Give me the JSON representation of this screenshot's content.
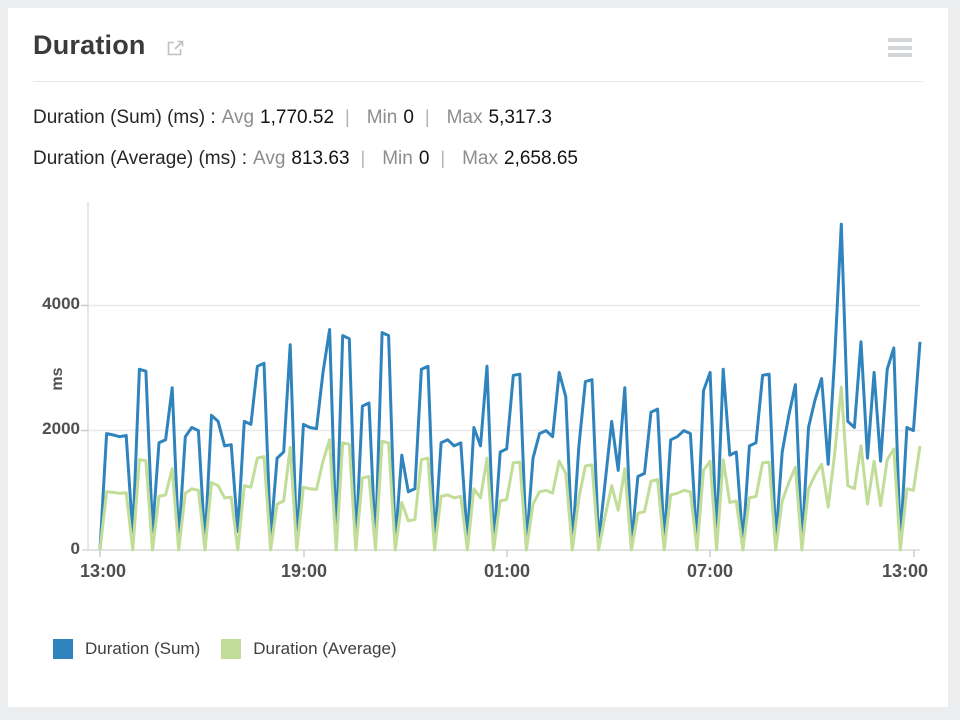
{
  "header": {
    "title": "Duration",
    "icons": {
      "expand": "external-link-icon",
      "options": "menu-icon"
    }
  },
  "separator": "|",
  "stats": [
    {
      "metric": "Duration (Sum) (ms) :",
      "pairs": [
        {
          "k": "Avg",
          "v": "1,770.52"
        },
        {
          "k": "Min",
          "v": "0"
        },
        {
          "k": "Max",
          "v": "5,317.3"
        }
      ]
    },
    {
      "metric": "Duration (Average) (ms) :",
      "pairs": [
        {
          "k": "Avg",
          "v": "813.63"
        },
        {
          "k": "Min",
          "v": "0"
        },
        {
          "k": "Max",
          "v": "2,658.65"
        }
      ]
    }
  ],
  "chart_data": {
    "type": "line",
    "title": "Duration",
    "xlabel": "",
    "ylabel": "ms",
    "ylim": [
      0,
      5600
    ],
    "y_ticks": [
      "0",
      "2000",
      "4000"
    ],
    "x_ticks": [
      "13:00",
      "19:00",
      "01:00",
      "07:00",
      "13:00"
    ],
    "x_span_hours": 24,
    "grid": "horizontal",
    "legend_position": "bottom",
    "series": [
      {
        "name": "Duration (Sum)",
        "unit": "ms",
        "color": "#2f84bd",
        "values": [
          0,
          1900,
          1880,
          1850,
          1870,
          250,
          2950,
          2920,
          300,
          1750,
          1800,
          2650,
          150,
          1850,
          2000,
          1950,
          100,
          2200,
          2100,
          1700,
          1720,
          300,
          2100,
          2050,
          3000,
          3050,
          200,
          1500,
          1600,
          3350,
          80,
          2050,
          2000,
          1980,
          2900,
          3600,
          150,
          3500,
          3450,
          100,
          2350,
          2400,
          90,
          3550,
          3500,
          120,
          1550,
          950,
          1000,
          2950,
          3000,
          130,
          1750,
          1800,
          1700,
          1750,
          160,
          2000,
          1700,
          3000,
          100,
          1600,
          1650,
          2850,
          2870,
          90,
          1500,
          1900,
          1950,
          1850,
          2900,
          2500,
          80,
          1700,
          2750,
          2780,
          120,
          1100,
          2100,
          1300,
          2650,
          100,
          1200,
          1250,
          2250,
          2300,
          130,
          1800,
          1850,
          1950,
          1900,
          100,
          2600,
          2900,
          200,
          2950,
          1550,
          1600,
          110,
          1700,
          1750,
          2850,
          2870,
          150,
          1600,
          2200,
          2700,
          90,
          2000,
          2450,
          2800,
          1400,
          3150,
          5317.3,
          2100,
          2000,
          3400,
          1500,
          2900,
          1450,
          2950,
          3300,
          100,
          2000,
          1950,
          3400
        ]
      },
      {
        "name": "Duration (Average)",
        "unit": "ms",
        "color": "#c1dd98",
        "values": [
          0,
          950,
          940,
          925,
          935,
          0,
          1475,
          1460,
          0,
          875,
          900,
          1325,
          0,
          925,
          1000,
          975,
          0,
          1100,
          1050,
          850,
          860,
          0,
          1050,
          1025,
          1500,
          1525,
          0,
          750,
          800,
          1675,
          0,
          1025,
          1000,
          990,
          1450,
          1800,
          0,
          1750,
          1725,
          0,
          1175,
          1200,
          0,
          1775,
          1750,
          0,
          775,
          475,
          500,
          1475,
          1500,
          0,
          875,
          900,
          850,
          875,
          0,
          1000,
          850,
          1500,
          0,
          800,
          825,
          1425,
          1435,
          0,
          750,
          950,
          975,
          925,
          1450,
          1250,
          0,
          850,
          1375,
          1390,
          0,
          550,
          1050,
          650,
          1325,
          0,
          600,
          625,
          1125,
          1150,
          0,
          900,
          925,
          975,
          950,
          0,
          1300,
          1450,
          0,
          1475,
          775,
          800,
          0,
          850,
          875,
          1425,
          1435,
          0,
          800,
          1100,
          1350,
          0,
          1000,
          1225,
          1400,
          700,
          1575,
          2658.65,
          1050,
          1000,
          1700,
          750,
          1450,
          725,
          1475,
          1650,
          0,
          1000,
          975,
          1700
        ]
      }
    ]
  },
  "legend": [
    {
      "label": "Duration (Sum)",
      "color": "#2f84bd"
    },
    {
      "label": "Duration (Average)",
      "color": "#c1dd98"
    }
  ],
  "colors": {
    "page_background": "#ebedee",
    "card_background": "#ffffff",
    "grid_line": "#e8e8e8",
    "axis_line": "#d9d9d9",
    "axis_text": "#4f4f4f",
    "muted_text": "#8d8d8d"
  }
}
